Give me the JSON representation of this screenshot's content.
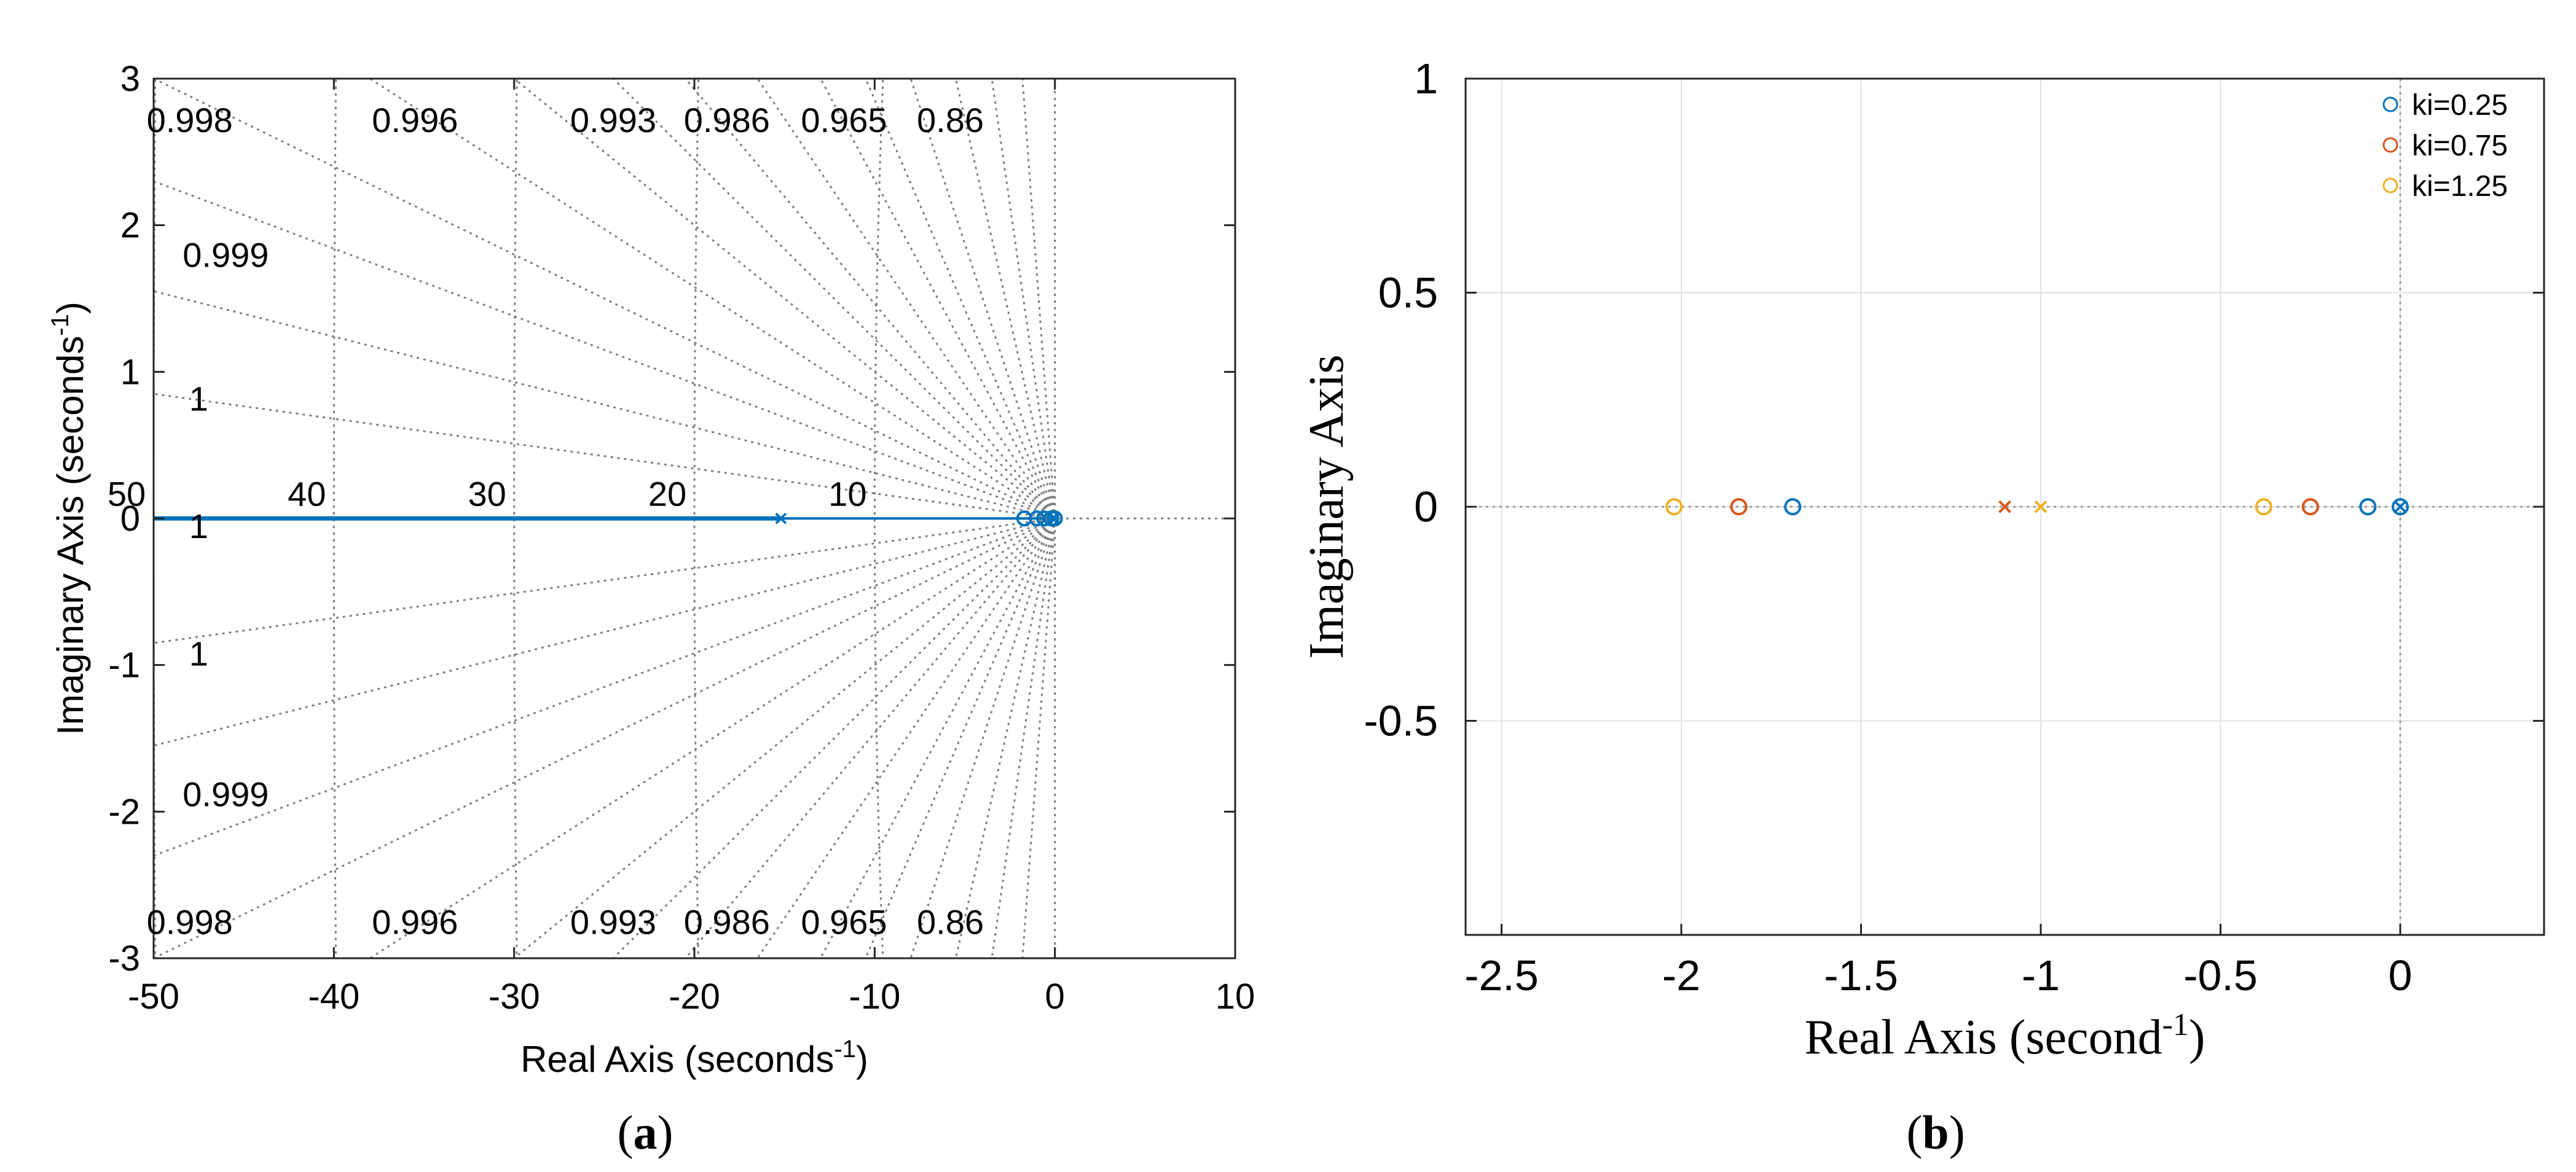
{
  "chart_data": [
    {
      "panel": "(a)",
      "type": "scatter",
      "subtype": "root-locus",
      "title": "",
      "xlabel": "Real Axis (seconds",
      "xlabel_sup": "-1",
      "xlabel_close": ")",
      "ylabel": "Imaginary Axis (seconds",
      "ylabel_sup": "-1",
      "ylabel_close": ")",
      "xlim": [
        -50,
        10
      ],
      "ylim": [
        -3,
        3
      ],
      "xticks": [
        -50,
        -40,
        -30,
        -20,
        -10,
        0,
        10
      ],
      "yticks": [
        -3,
        -2,
        -1,
        0,
        1,
        2,
        3
      ],
      "xtick_labels": [
        "-50",
        "-40",
        "-30",
        "-20",
        "-10",
        "0",
        "10"
      ],
      "ytick_labels": [
        "-3",
        "-2",
        "-1",
        "0",
        "1",
        "2",
        "3"
      ],
      "grid": "sgrid",
      "damping_labels": [
        {
          "text": "0.998",
          "x": -48,
          "y": 2.72
        },
        {
          "text": "0.996",
          "x": -35.5,
          "y": 2.72
        },
        {
          "text": "0.993",
          "x": -24.5,
          "y": 2.72
        },
        {
          "text": "0.986",
          "x": -18.2,
          "y": 2.72
        },
        {
          "text": "0.965",
          "x": -11.7,
          "y": 2.72
        },
        {
          "text": "0.86",
          "x": -5.8,
          "y": 2.72
        },
        {
          "text": "0.999",
          "x": -46,
          "y": 1.8
        },
        {
          "text": "1",
          "x": -47.5,
          "y": 0.82
        },
        {
          "text": "1",
          "x": -47.5,
          "y": -0.05
        },
        {
          "text": "1",
          "x": -47.5,
          "y": -0.92
        },
        {
          "text": "0.999",
          "x": -46,
          "y": -1.88
        },
        {
          "text": "0.998",
          "x": -48,
          "y": -2.75
        },
        {
          "text": "0.996",
          "x": -35.5,
          "y": -2.75
        },
        {
          "text": "0.993",
          "x": -24.5,
          "y": -2.75
        },
        {
          "text": "0.986",
          "x": -18.2,
          "y": -2.75
        },
        {
          "text": "0.965",
          "x": -11.7,
          "y": -2.75
        },
        {
          "text": "0.86",
          "x": -5.8,
          "y": -2.75
        }
      ],
      "frequency_labels": [
        {
          "text": "50",
          "x": -51.5,
          "y": 0.12
        },
        {
          "text": "40",
          "x": -41.5,
          "y": 0.12
        },
        {
          "text": "30",
          "x": -31.5,
          "y": 0.12
        },
        {
          "text": "20",
          "x": -21.5,
          "y": 0.12
        },
        {
          "text": "10",
          "x": -11.5,
          "y": 0.12
        }
      ],
      "branch": {
        "x": [
          -50,
          -15.2
        ],
        "y": [
          0,
          0
        ]
      },
      "poles": [
        {
          "x": -15.2,
          "y": 0
        },
        {
          "x": -0.1,
          "y": 0
        },
        {
          "x": 0,
          "y": 0
        }
      ],
      "zeros": [
        {
          "x": -1.7,
          "y": 0
        },
        {
          "x": -1.0,
          "y": 0
        },
        {
          "x": -0.6,
          "y": 0
        },
        {
          "x": -0.2,
          "y": 0
        },
        {
          "x": 0,
          "y": 0
        }
      ],
      "color": "#0072BD"
    },
    {
      "panel": "(b)",
      "type": "scatter",
      "subtype": "pole-zero",
      "title": "",
      "xlabel": "Real Axis (second",
      "xlabel_sup": "-1",
      "xlabel_close": ")",
      "ylabel": "Imaginary Axis",
      "xlim": [
        -2.6,
        0.4
      ],
      "ylim": [
        -1,
        1
      ],
      "xticks": [
        -2.5,
        -2,
        -1.5,
        -1,
        -0.5,
        0
      ],
      "yticks": [
        -0.5,
        0,
        0.5,
        1
      ],
      "xtick_labels": [
        "-2.5",
        "-2",
        "-1.5",
        "-1",
        "-0.5",
        "0"
      ],
      "ytick_labels": [
        "-0.5",
        "0",
        "0.5",
        "1"
      ],
      "grid": true,
      "legend": "top-right",
      "series": [
        {
          "name": "ki=0.25",
          "color": "#0072BD",
          "zeros": [
            {
              "x": -1.69,
              "y": 0
            },
            {
              "x": -0.09,
              "y": 0
            },
            {
              "x": 0,
              "y": 0
            }
          ],
          "poles": [
            {
              "x": 0,
              "y": 0
            }
          ]
        },
        {
          "name": "ki=0.75",
          "color": "#D95319",
          "zeros": [
            {
              "x": -1.84,
              "y": 0
            },
            {
              "x": -0.25,
              "y": 0
            }
          ],
          "poles": [
            {
              "x": -1.1,
              "y": 0
            }
          ]
        },
        {
          "name": "ki=1.25",
          "color": "#EDB120",
          "zeros": [
            {
              "x": -2.02,
              "y": 0
            },
            {
              "x": -0.38,
              "y": 0
            }
          ],
          "poles": [
            {
              "x": -1.0,
              "y": 0
            }
          ]
        }
      ]
    }
  ],
  "captions": {
    "a": "a",
    "b": "b"
  }
}
